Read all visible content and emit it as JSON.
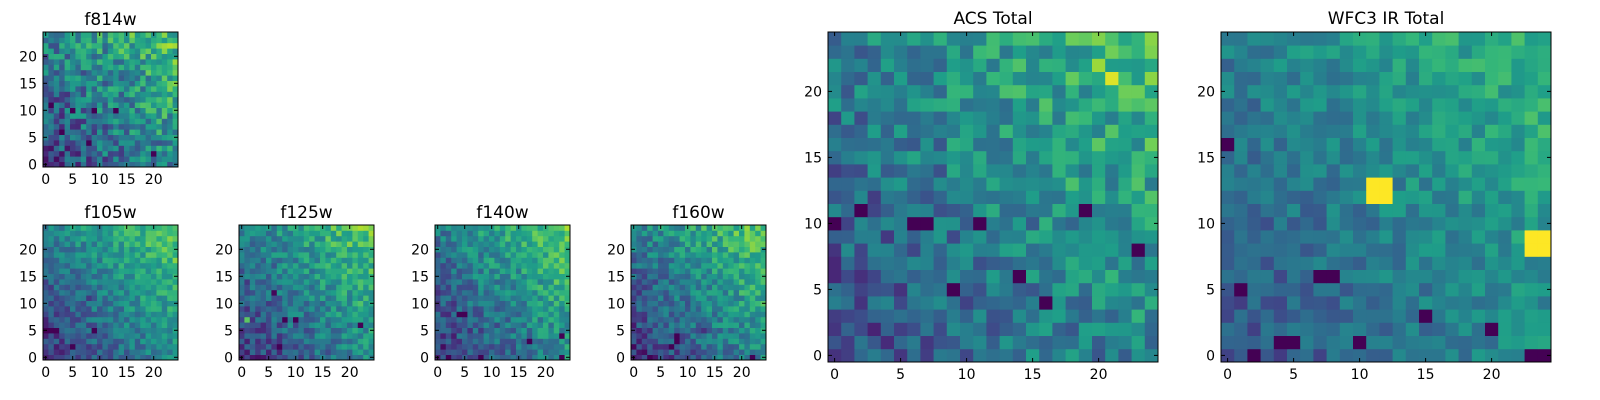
{
  "chart_data": [
    {
      "type": "heatmap",
      "title": "f814w",
      "grid_size": 25,
      "xlim": [
        0,
        24
      ],
      "ylim": [
        0,
        24
      ],
      "xticks": [
        0,
        5,
        10,
        15,
        20
      ],
      "yticks": [
        0,
        5,
        10,
        15,
        20
      ],
      "colormap": "viridis",
      "seed": 11,
      "grad": 0.5,
      "noise": 0.22,
      "spots": [
        [
          5,
          10,
          -0.8
        ],
        [
          9,
          10,
          -0.8
        ],
        [
          13,
          10,
          -0.8
        ],
        [
          8,
          4,
          -0.7
        ],
        [
          3,
          6,
          -0.6
        ],
        [
          20,
          2,
          -0.6
        ],
        [
          1,
          11,
          -0.6
        ],
        [
          19,
          17,
          0.4
        ]
      ]
    },
    {
      "type": "heatmap",
      "title": "f105w",
      "grid_size": 25,
      "xlim": [
        0,
        24
      ],
      "ylim": [
        0,
        24
      ],
      "xticks": [
        0,
        5,
        10,
        15,
        20
      ],
      "yticks": [
        0,
        5,
        10,
        15,
        20
      ],
      "colormap": "viridis",
      "seed": 23,
      "grad": 0.6,
      "noise": 0.14,
      "spots": [
        [
          0,
          5,
          -0.8
        ],
        [
          1,
          5,
          -0.8
        ],
        [
          2,
          5,
          -0.7
        ],
        [
          5,
          2,
          -0.8
        ],
        [
          9,
          5,
          -0.4
        ],
        [
          8,
          11,
          -0.3
        ]
      ]
    },
    {
      "type": "heatmap",
      "title": "f125w",
      "grid_size": 25,
      "xlim": [
        0,
        24
      ],
      "ylim": [
        0,
        24
      ],
      "xticks": [
        0,
        5,
        10,
        15,
        20
      ],
      "yticks": [
        0,
        5,
        10,
        15,
        20
      ],
      "colormap": "viridis",
      "seed": 37,
      "grad": 0.6,
      "noise": 0.16,
      "spots": [
        [
          8,
          7,
          -0.8
        ],
        [
          10,
          7,
          -0.7
        ],
        [
          7,
          2,
          -0.8
        ],
        [
          22,
          6,
          -0.7
        ],
        [
          1,
          7,
          0.4
        ],
        [
          6,
          12,
          -0.4
        ]
      ]
    },
    {
      "type": "heatmap",
      "title": "f140w",
      "grid_size": 25,
      "xlim": [
        0,
        24
      ],
      "ylim": [
        0,
        24
      ],
      "xticks": [
        0,
        5,
        10,
        15,
        20
      ],
      "yticks": [
        0,
        5,
        10,
        15,
        20
      ],
      "colormap": "viridis",
      "seed": 51,
      "grad": 0.6,
      "noise": 0.16,
      "spots": [
        [
          4,
          8,
          -0.7
        ],
        [
          5,
          8,
          -0.6
        ],
        [
          2,
          0,
          -0.8
        ],
        [
          8,
          0,
          -0.8
        ],
        [
          23,
          4,
          -0.8
        ],
        [
          23,
          0,
          -0.7
        ],
        [
          17,
          3,
          -0.4
        ]
      ]
    },
    {
      "type": "heatmap",
      "title": "f160w",
      "grid_size": 25,
      "xlim": [
        0,
        24
      ],
      "ylim": [
        0,
        24
      ],
      "xticks": [
        0,
        5,
        10,
        15,
        20
      ],
      "yticks": [
        0,
        5,
        10,
        15,
        20
      ],
      "colormap": "viridis",
      "seed": 67,
      "grad": 0.6,
      "noise": 0.16,
      "spots": [
        [
          8,
          4,
          -0.8
        ],
        [
          8,
          3,
          -0.8
        ],
        [
          7,
          2,
          -0.7
        ],
        [
          3,
          0,
          -0.8
        ],
        [
          22,
          0,
          -0.6
        ],
        [
          13,
          5,
          -0.4
        ]
      ]
    },
    {
      "type": "heatmap",
      "title": "ACS Total",
      "grid_size": 25,
      "xlim": [
        0,
        24
      ],
      "ylim": [
        0,
        24
      ],
      "xticks": [
        0,
        5,
        10,
        15,
        20
      ],
      "yticks": [
        0,
        5,
        10,
        15,
        20
      ],
      "colormap": "viridis",
      "seed": 89,
      "grad": 0.45,
      "noise": 0.18,
      "spots": [
        [
          0,
          10,
          -0.8
        ],
        [
          2,
          11,
          -0.7
        ],
        [
          6,
          10,
          -0.8
        ],
        [
          7,
          10,
          -0.8
        ],
        [
          11,
          10,
          -0.8
        ],
        [
          19,
          11,
          -0.8
        ],
        [
          14,
          6,
          -0.8
        ],
        [
          16,
          4,
          -0.8
        ],
        [
          23,
          8,
          -0.8
        ],
        [
          9,
          5,
          -0.7
        ],
        [
          17,
          15,
          0.3
        ],
        [
          17,
          14,
          0.3
        ],
        [
          18,
          13,
          0.3
        ],
        [
          20,
          22,
          0.3
        ],
        [
          21,
          21,
          0.3
        ]
      ]
    },
    {
      "type": "heatmap",
      "title": "WFC3 IR Total",
      "grid_size": 25,
      "xlim": [
        0,
        24
      ],
      "ylim": [
        0,
        24
      ],
      "xticks": [
        0,
        5,
        10,
        15,
        20
      ],
      "yticks": [
        0,
        5,
        10,
        15,
        20
      ],
      "colormap": "viridis",
      "seed": 103,
      "grad": 0.4,
      "noise": 0.12,
      "spots": [
        [
          11,
          12,
          0.9
        ],
        [
          12,
          12,
          0.9
        ],
        [
          11,
          13,
          0.9
        ],
        [
          12,
          13,
          0.7
        ],
        [
          23,
          8,
          0.9
        ],
        [
          24,
          8,
          0.9
        ],
        [
          23,
          9,
          0.9
        ],
        [
          24,
          9,
          0.9
        ],
        [
          0,
          16,
          -0.8
        ],
        [
          1,
          5,
          -0.8
        ],
        [
          2,
          0,
          -0.8
        ],
        [
          7,
          6,
          -0.7
        ],
        [
          8,
          6,
          -0.7
        ],
        [
          4,
          1,
          -0.7
        ],
        [
          5,
          1,
          -0.7
        ],
        [
          10,
          1,
          -0.6
        ],
        [
          15,
          3,
          -0.6
        ],
        [
          20,
          2,
          -0.6
        ],
        [
          23,
          0,
          -0.6
        ],
        [
          24,
          0,
          -0.6
        ]
      ]
    }
  ]
}
